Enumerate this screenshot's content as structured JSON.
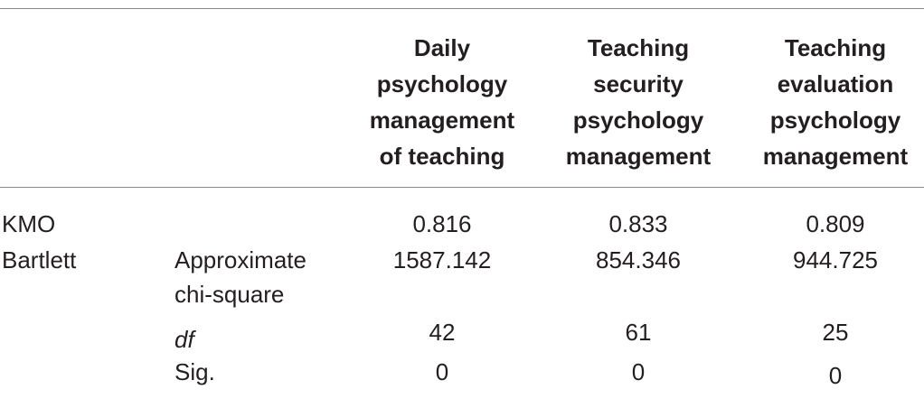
{
  "table": {
    "headers": [
      [
        "Daily",
        "psychology",
        "management",
        "of teaching"
      ],
      [
        "Teaching",
        "security",
        "psychology",
        "management"
      ],
      [
        "Teaching",
        "evaluation",
        "psychology",
        "management"
      ]
    ],
    "rows": [
      {
        "label": "KMO",
        "sub": "",
        "values": [
          "0.816",
          "0.833",
          "0.809"
        ]
      },
      {
        "label": "Bartlett",
        "sub": [
          "Approximate",
          "chi-square"
        ],
        "values": [
          "1587.142",
          "854.346",
          "944.725"
        ]
      },
      {
        "label": "",
        "sub": "df",
        "values": [
          "42",
          "61",
          "25"
        ]
      },
      {
        "label": "",
        "sub": "Sig.",
        "values": [
          "0",
          "0",
          "0"
        ]
      }
    ]
  }
}
